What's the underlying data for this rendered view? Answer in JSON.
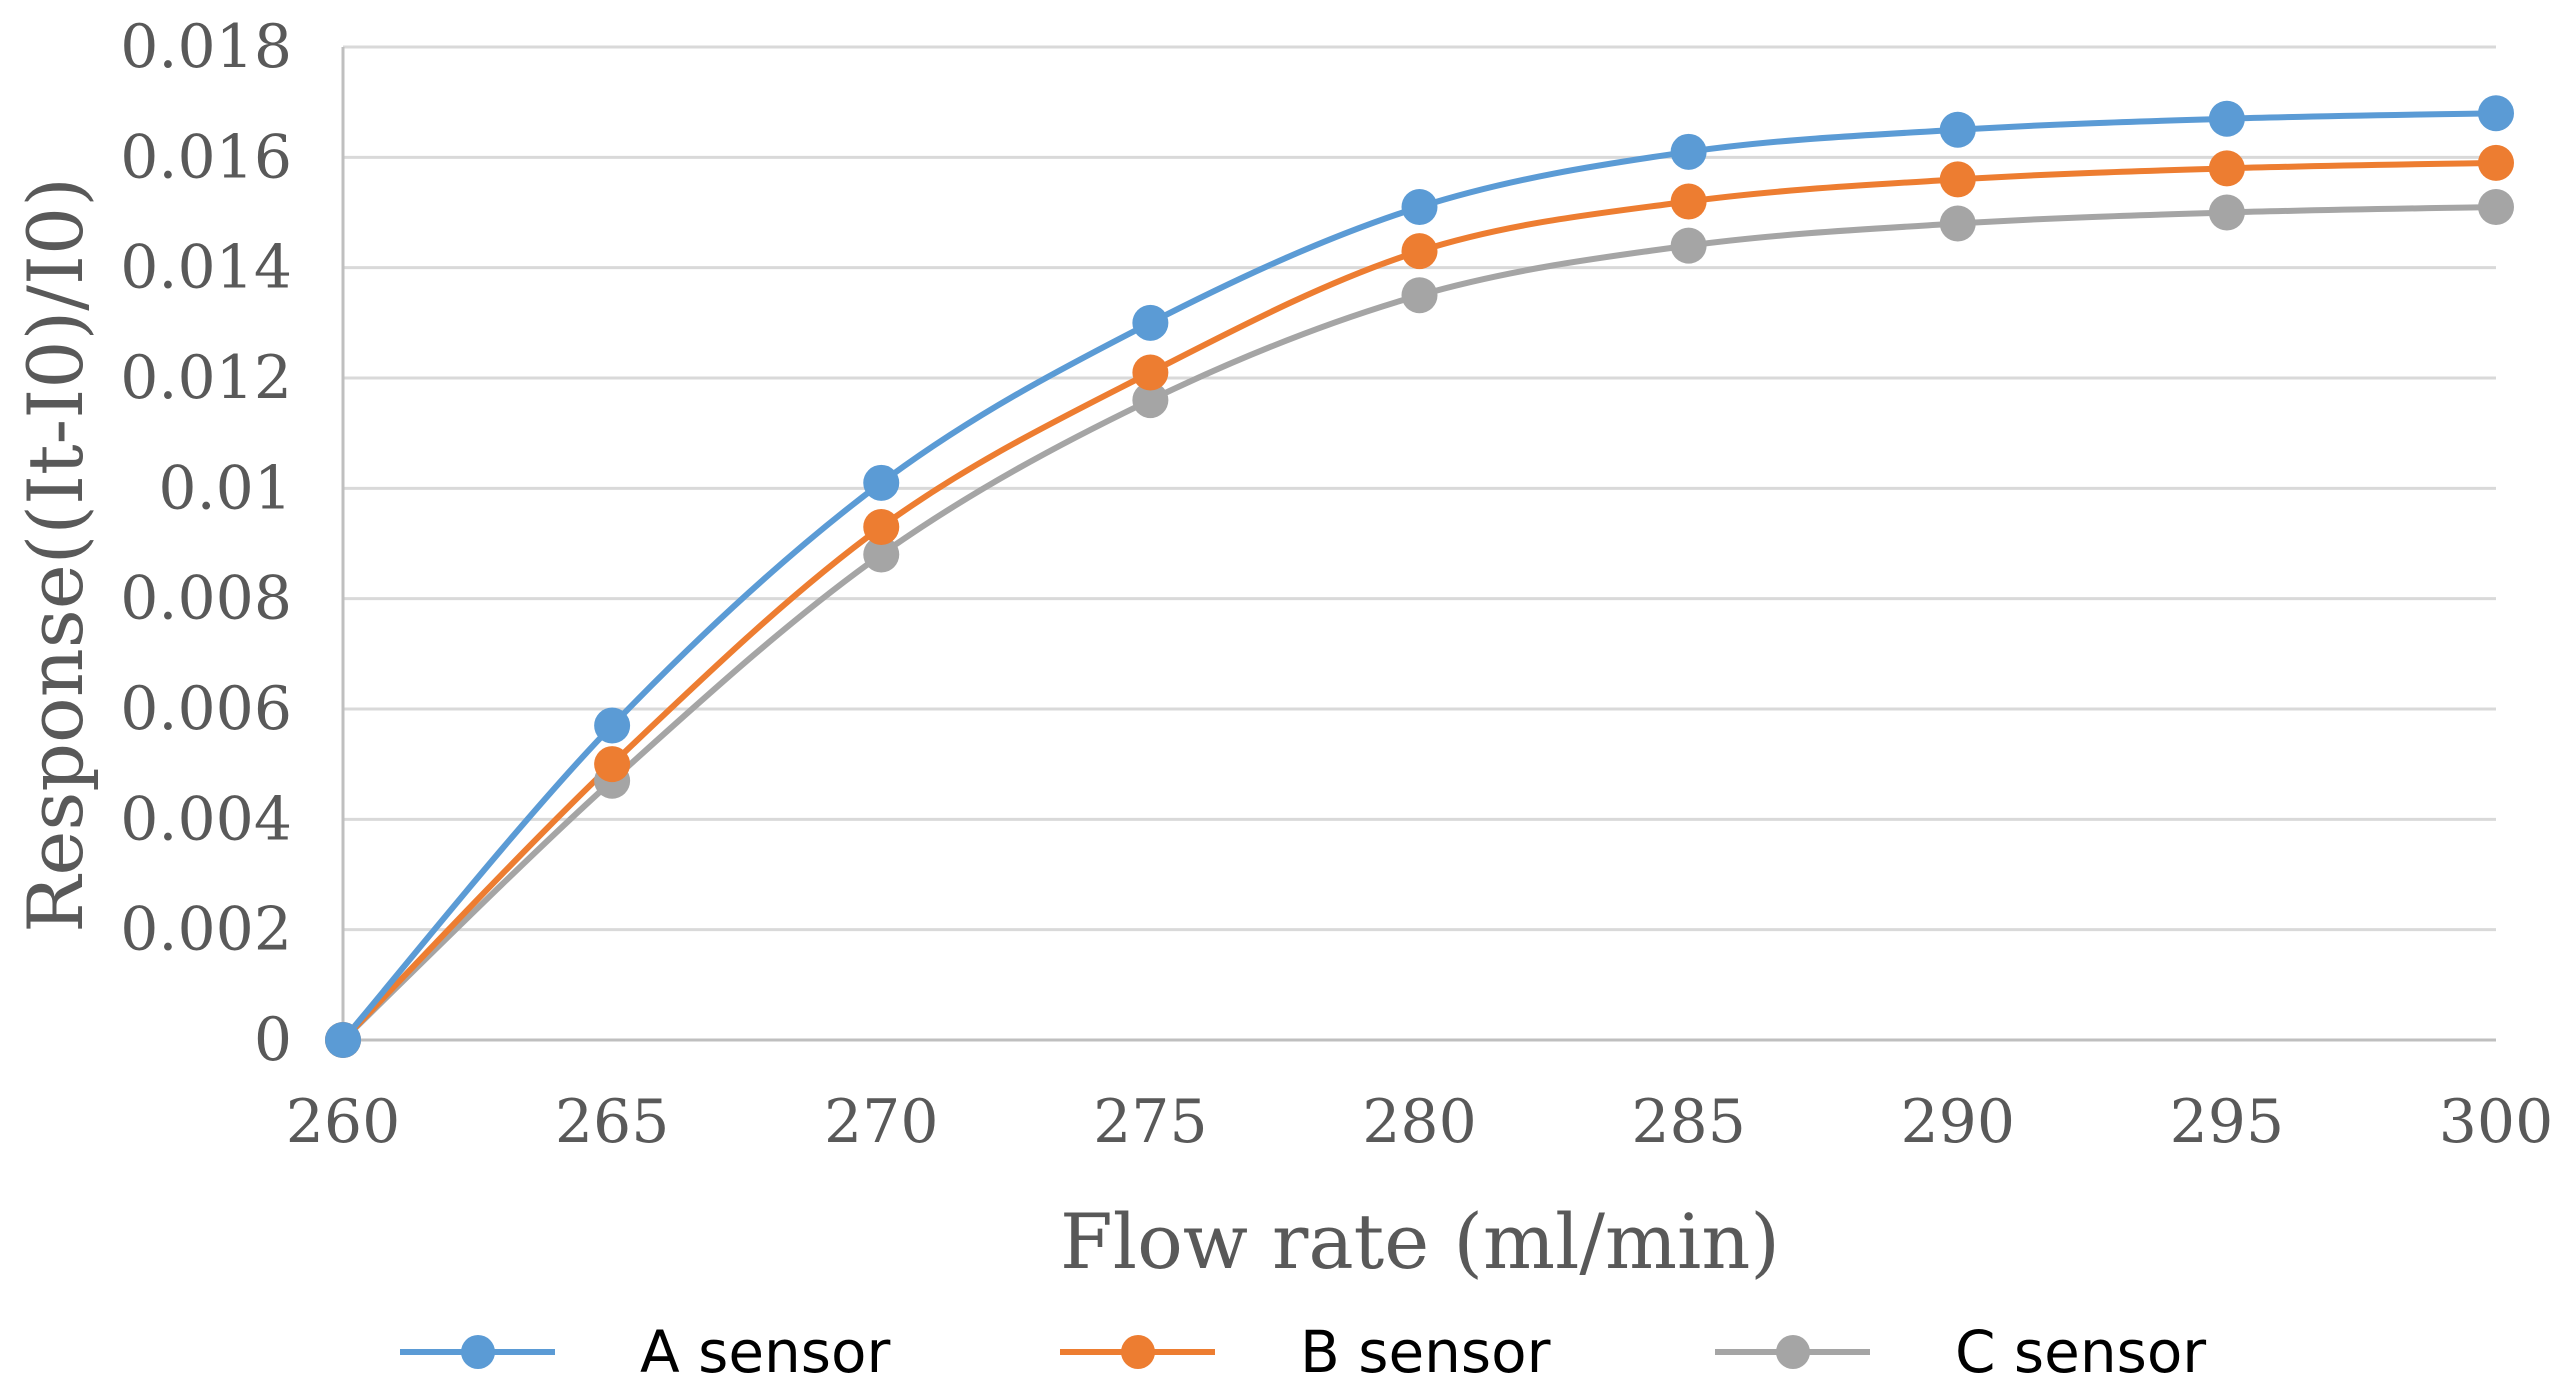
{
  "chart_data": {
    "type": "line",
    "smooth": true,
    "title": "",
    "xlabel": "Flow rate (ml/min)",
    "ylabel": "Response((It-I0)/I0)",
    "x": [
      260,
      265,
      270,
      275,
      280,
      285,
      290,
      295,
      300
    ],
    "xlim": [
      260,
      300
    ],
    "ylim": [
      0,
      0.018
    ],
    "xticks": [
      260,
      265,
      270,
      275,
      280,
      285,
      290,
      295,
      300
    ],
    "xtick_labels": [
      "260",
      "265",
      "270",
      "275",
      "280",
      "285",
      "290",
      "295",
      "300"
    ],
    "yticks": [
      0,
      0.002,
      0.004,
      0.006,
      0.008,
      0.01,
      0.012,
      0.014,
      0.016,
      0.018
    ],
    "ytick_labels": [
      "0",
      "0.002",
      "0.004",
      "0.006",
      "0.008",
      "0.01",
      "0.012",
      "0.014",
      "0.016",
      "0.018"
    ],
    "grid": "horizontal",
    "legend_position": "bottom",
    "series": [
      {
        "name": "A sensor",
        "color": "#5B9BD5",
        "values": [
          0,
          0.0057,
          0.0101,
          0.013,
          0.0151,
          0.0161,
          0.0165,
          0.0167,
          0.0168
        ]
      },
      {
        "name": "B sensor",
        "color": "#ED7D31",
        "values": [
          0,
          0.005,
          0.0093,
          0.0121,
          0.0143,
          0.0152,
          0.0156,
          0.0158,
          0.0159
        ]
      },
      {
        "name": "C sensor",
        "color": "#A5A5A5",
        "values": [
          0,
          0.0047,
          0.0088,
          0.0116,
          0.0135,
          0.0144,
          0.0148,
          0.015,
          0.0151
        ]
      }
    ]
  }
}
